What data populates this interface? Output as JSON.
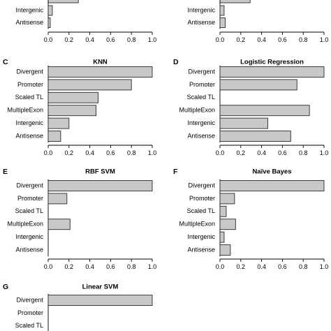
{
  "colors": {
    "bar_fill": "#c6c9c6",
    "bar_stroke": "#2a2a2a"
  },
  "chart_data": [
    {
      "id": "A",
      "type": "bar",
      "orientation": "horizontal",
      "letter": "",
      "title": "",
      "categories": [
        "Intergenic",
        "Antisense"
      ],
      "values": [
        0.04,
        0.02
      ],
      "partial_bar_value": 0.29,
      "xlim": [
        0,
        1
      ],
      "xticks": [
        "0.0",
        "0.2",
        "0.4",
        "0.6",
        "0.8",
        "1.0"
      ]
    },
    {
      "id": "B",
      "type": "bar",
      "orientation": "horizontal",
      "letter": "",
      "title": "",
      "categories": [
        "Intergenic",
        "Antisense"
      ],
      "values": [
        0.04,
        0.05
      ],
      "partial_bar_value": 0.29,
      "xlim": [
        0,
        1
      ],
      "xticks": [
        "0.0",
        "0.2",
        "0.4",
        "0.6",
        "0.8",
        "1.0"
      ]
    },
    {
      "id": "C",
      "type": "bar",
      "orientation": "horizontal",
      "letter": "C",
      "title": "KNN",
      "categories": [
        "Divergent",
        "Promoter",
        "Scaled TL",
        "MultipleExon",
        "Intergenic",
        "Antisense"
      ],
      "values": [
        1.0,
        0.8,
        0.48,
        0.46,
        0.2,
        0.12
      ],
      "xlim": [
        0,
        1
      ],
      "xticks": [
        "0.0",
        "0.2",
        "0.4",
        "0.6",
        "0.8",
        "1.0"
      ]
    },
    {
      "id": "D",
      "type": "bar",
      "orientation": "horizontal",
      "letter": "D",
      "title": "Logistic Regression",
      "categories": [
        "Divergent",
        "Promoter",
        "Scaled TL",
        "MultipleExon",
        "Intergenic",
        "Antisense"
      ],
      "values": [
        1.0,
        0.74,
        0.0,
        0.86,
        0.46,
        0.68
      ],
      "xlim": [
        0,
        1
      ],
      "xticks": [
        "0.0",
        "0.2",
        "0.4",
        "0.6",
        "0.8",
        "1.0"
      ]
    },
    {
      "id": "E",
      "type": "bar",
      "orientation": "horizontal",
      "letter": "E",
      "title": "RBF SVM",
      "categories": [
        "Divergent",
        "Promoter",
        "Scaled TL",
        "MultipleExon",
        "Intergenic",
        "Antisense"
      ],
      "values": [
        1.0,
        0.18,
        0.0,
        0.21,
        0.0,
        0.0
      ],
      "xlim": [
        0,
        1
      ],
      "xticks": [
        "0.0",
        "0.2",
        "0.4",
        "0.6",
        "0.8",
        "1.0"
      ]
    },
    {
      "id": "F",
      "type": "bar",
      "orientation": "horizontal",
      "letter": "F",
      "title": "Naïve Bayes",
      "categories": [
        "Divergent",
        "Promoter",
        "Scaled TL",
        "MultipleExon",
        "Intergenic",
        "Antisense"
      ],
      "values": [
        1.0,
        0.14,
        0.06,
        0.15,
        0.04,
        0.1
      ],
      "xlim": [
        0,
        1
      ],
      "xticks": [
        "0.0",
        "0.2",
        "0.4",
        "0.6",
        "0.8",
        "1.0"
      ]
    },
    {
      "id": "G",
      "type": "bar",
      "orientation": "horizontal",
      "letter": "G",
      "title": "Linear SVM",
      "categories": [
        "Divergent",
        "Promoter",
        "Scaled TL"
      ],
      "values": [
        1.0,
        0.0,
        0.0
      ],
      "xlim": [
        0,
        1
      ],
      "xticks": []
    }
  ]
}
